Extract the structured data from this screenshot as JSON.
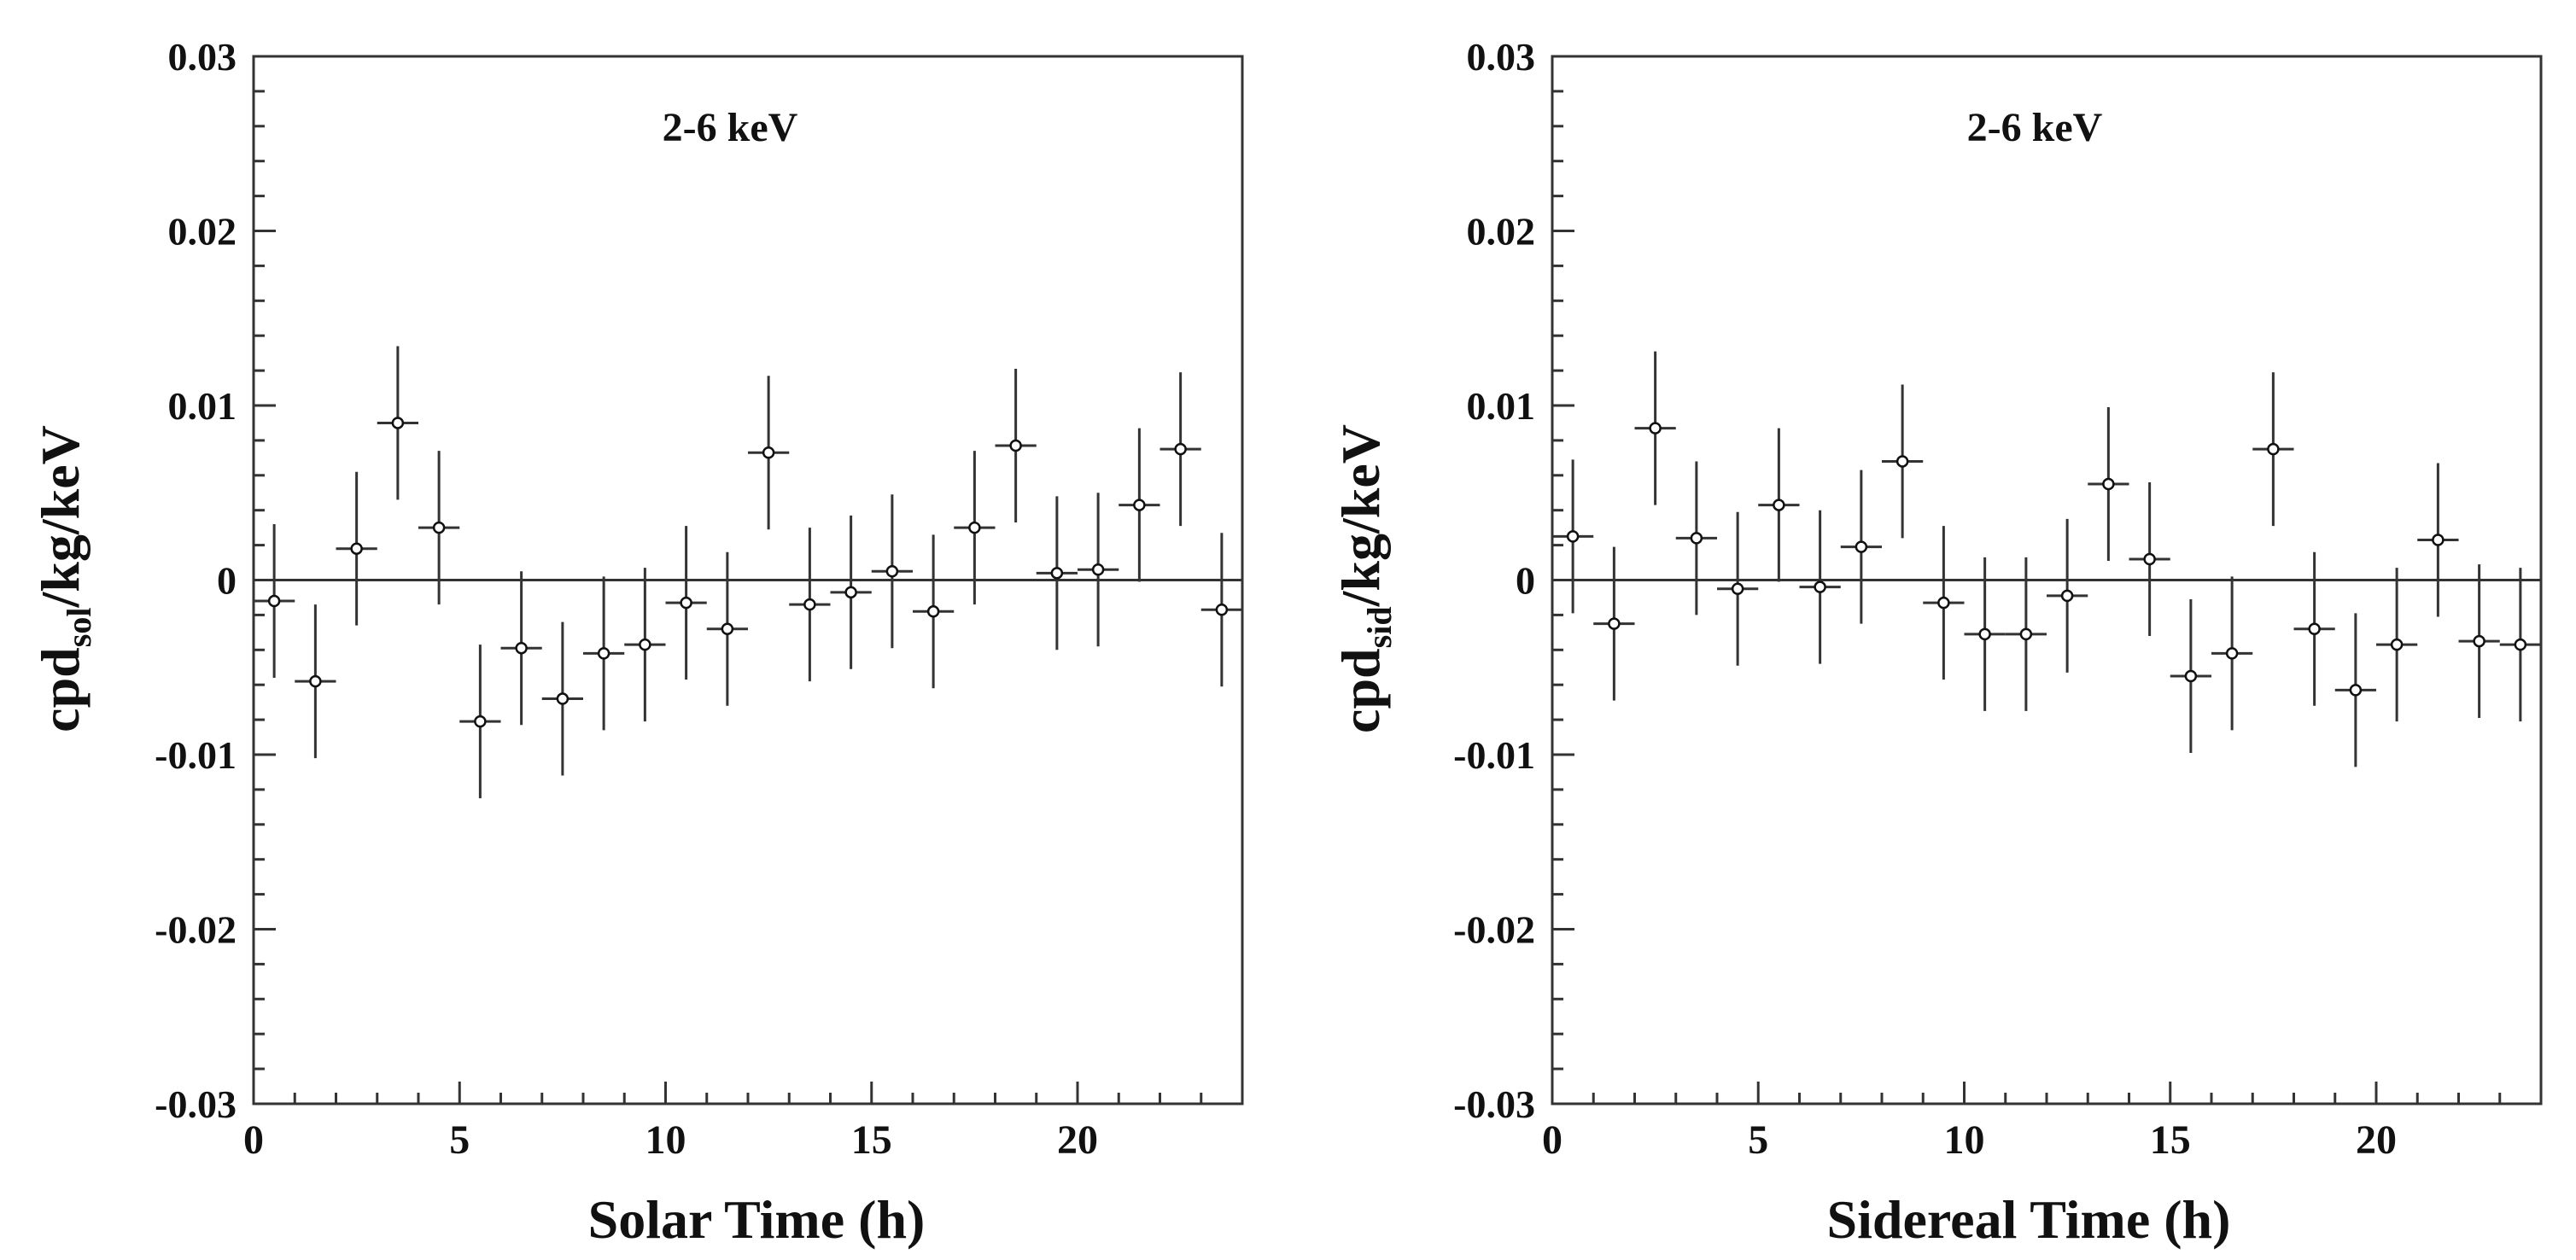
{
  "chart_data": [
    {
      "type": "scatter",
      "title": "2-6 keV",
      "xlabel": "Solar Time (h)",
      "ylabel": {
        "main": "cpd",
        "sub": "sol",
        "rest": "/kg/keV"
      },
      "xlim": [
        0,
        24
      ],
      "ylim": [
        -0.03,
        0.03
      ],
      "x_ticks": [
        0,
        5,
        10,
        15,
        20
      ],
      "x_tick_labels": [
        "0",
        "5",
        "10",
        "15",
        "20"
      ],
      "y_ticks": [
        0.03,
        0.02,
        0.01,
        0,
        -0.01,
        -0.02,
        -0.03
      ],
      "y_tick_labels": [
        "0.03",
        "0.02",
        "0.01",
        "0",
        "-0.01",
        "-0.02",
        "-0.03"
      ],
      "reference_line": 0,
      "x_halfwidth": 0.5,
      "y_error": 0.0044,
      "x": [
        0.5,
        1.5,
        2.5,
        3.5,
        4.5,
        5.5,
        6.5,
        7.5,
        8.5,
        9.5,
        10.5,
        11.5,
        12.5,
        13.5,
        14.5,
        15.5,
        16.5,
        17.5,
        18.5,
        19.5,
        20.5,
        21.5,
        22.5,
        23.5
      ],
      "y": [
        -0.0012,
        -0.0058,
        0.0018,
        0.009,
        0.003,
        -0.0081,
        -0.0039,
        -0.0068,
        -0.0042,
        -0.0037,
        -0.0013,
        -0.0028,
        0.0073,
        -0.0014,
        -0.0007,
        0.0005,
        -0.0018,
        0.003,
        0.0077,
        0.0004,
        0.0006,
        0.0043,
        0.0075,
        -0.0017
      ]
    },
    {
      "type": "scatter",
      "title": "2-6 keV",
      "xlabel": "Sidereal Time (h)",
      "ylabel": {
        "main": "cpd",
        "sub": "sid",
        "rest": "/kg/keV"
      },
      "xlim": [
        0,
        24
      ],
      "ylim": [
        -0.03,
        0.03
      ],
      "x_ticks": [
        0,
        5,
        10,
        15,
        20
      ],
      "x_tick_labels": [
        "0",
        "5",
        "10",
        "15",
        "20"
      ],
      "y_ticks": [
        0.03,
        0.02,
        0.01,
        0,
        -0.01,
        -0.02,
        -0.03
      ],
      "y_tick_labels": [
        "0.03",
        "0.02",
        "0.01",
        "0",
        "-0.01",
        "-0.02",
        "-0.03"
      ],
      "reference_line": 0,
      "x_halfwidth": 0.5,
      "y_error": 0.0044,
      "x": [
        0.5,
        1.5,
        2.5,
        3.5,
        4.5,
        5.5,
        6.5,
        7.5,
        8.5,
        9.5,
        10.5,
        11.5,
        12.5,
        13.5,
        14.5,
        15.5,
        16.5,
        17.5,
        18.5,
        19.5,
        20.5,
        21.5,
        22.5,
        23.5
      ],
      "y": [
        0.0025,
        -0.0025,
        0.0087,
        0.0024,
        -0.0005,
        0.0043,
        -0.0004,
        0.0019,
        0.0068,
        -0.0013,
        -0.0031,
        -0.0031,
        -0.0009,
        0.0055,
        0.0012,
        -0.0055,
        -0.0042,
        0.0075,
        -0.0028,
        -0.0063,
        -0.0037,
        0.0023,
        -0.0035,
        -0.0037
      ]
    }
  ]
}
